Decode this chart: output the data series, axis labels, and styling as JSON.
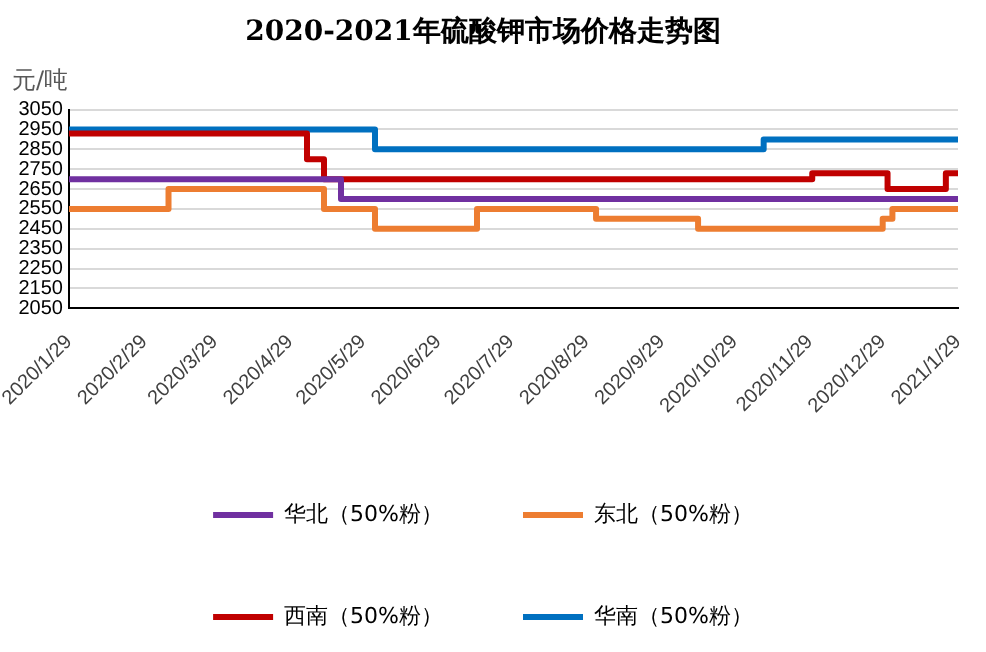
{
  "chart_data": {
    "type": "step",
    "title": "2020-2021年硫酸钾市场价格走势图",
    "ylabel": "元/吨",
    "xlim": [
      "2020-01-29",
      "2021-01-29"
    ],
    "xticks": [
      {
        "value": "2020-01-29",
        "label": "2020/1/29"
      },
      {
        "value": "2020-02-29",
        "label": "2020/2/29"
      },
      {
        "value": "2020-03-29",
        "label": "2020/3/29"
      },
      {
        "value": "2020-04-29",
        "label": "2020/4/29"
      },
      {
        "value": "2020-05-29",
        "label": "2020/5/29"
      },
      {
        "value": "2020-06-29",
        "label": "2020/6/29"
      },
      {
        "value": "2020-07-29",
        "label": "2020/7/29"
      },
      {
        "value": "2020-08-29",
        "label": "2020/8/29"
      },
      {
        "value": "2020-09-29",
        "label": "2020/9/29"
      },
      {
        "value": "2020-10-29",
        "label": "2020/10/29"
      },
      {
        "value": "2020-11-29",
        "label": "2020/11/29"
      },
      {
        "value": "2020-12-29",
        "label": "2020/12/29"
      },
      {
        "value": "2021-01-29",
        "label": "2021/1/29"
      }
    ],
    "ylim": [
      2050,
      3050
    ],
    "yticks": [
      2050,
      2150,
      2250,
      2350,
      2450,
      2550,
      2650,
      2750,
      2850,
      2950,
      3050
    ],
    "grid": "y",
    "legend": "bottom",
    "marker": "none",
    "line_style": "solid",
    "series": [
      {
        "name": "华北（50%粉）",
        "color": "#7030a0",
        "x": [
          "2020-01-29",
          "2020-05-20",
          "2021-01-29"
        ],
        "values": [
          2700,
          2600,
          2600
        ]
      },
      {
        "name": "东北（50%粉）",
        "color": "#ed7d31",
        "x": [
          "2020-01-29",
          "2020-03-10",
          "2020-05-13",
          "2020-06-03",
          "2020-07-15",
          "2020-09-02",
          "2020-10-14",
          "2020-12-29",
          "2021-01-02",
          "2021-01-29"
        ],
        "values": [
          2550,
          2650,
          2550,
          2450,
          2550,
          2500,
          2450,
          2500,
          2550,
          2550
        ]
      },
      {
        "name": "西南（50%粉）",
        "color": "#c00000",
        "x": [
          "2020-01-29",
          "2020-05-06",
          "2020-05-13",
          "2020-11-30",
          "2020-12-31",
          "2021-01-24",
          "2021-01-29"
        ],
        "values": [
          2930,
          2800,
          2700,
          2730,
          2650,
          2730,
          2730
        ]
      },
      {
        "name": "华南（50%粉）",
        "color": "#0070c0",
        "x": [
          "2020-01-29",
          "2020-06-03",
          "2020-11-10",
          "2021-01-29"
        ],
        "values": [
          2950,
          2850,
          2900,
          2900
        ]
      }
    ]
  }
}
